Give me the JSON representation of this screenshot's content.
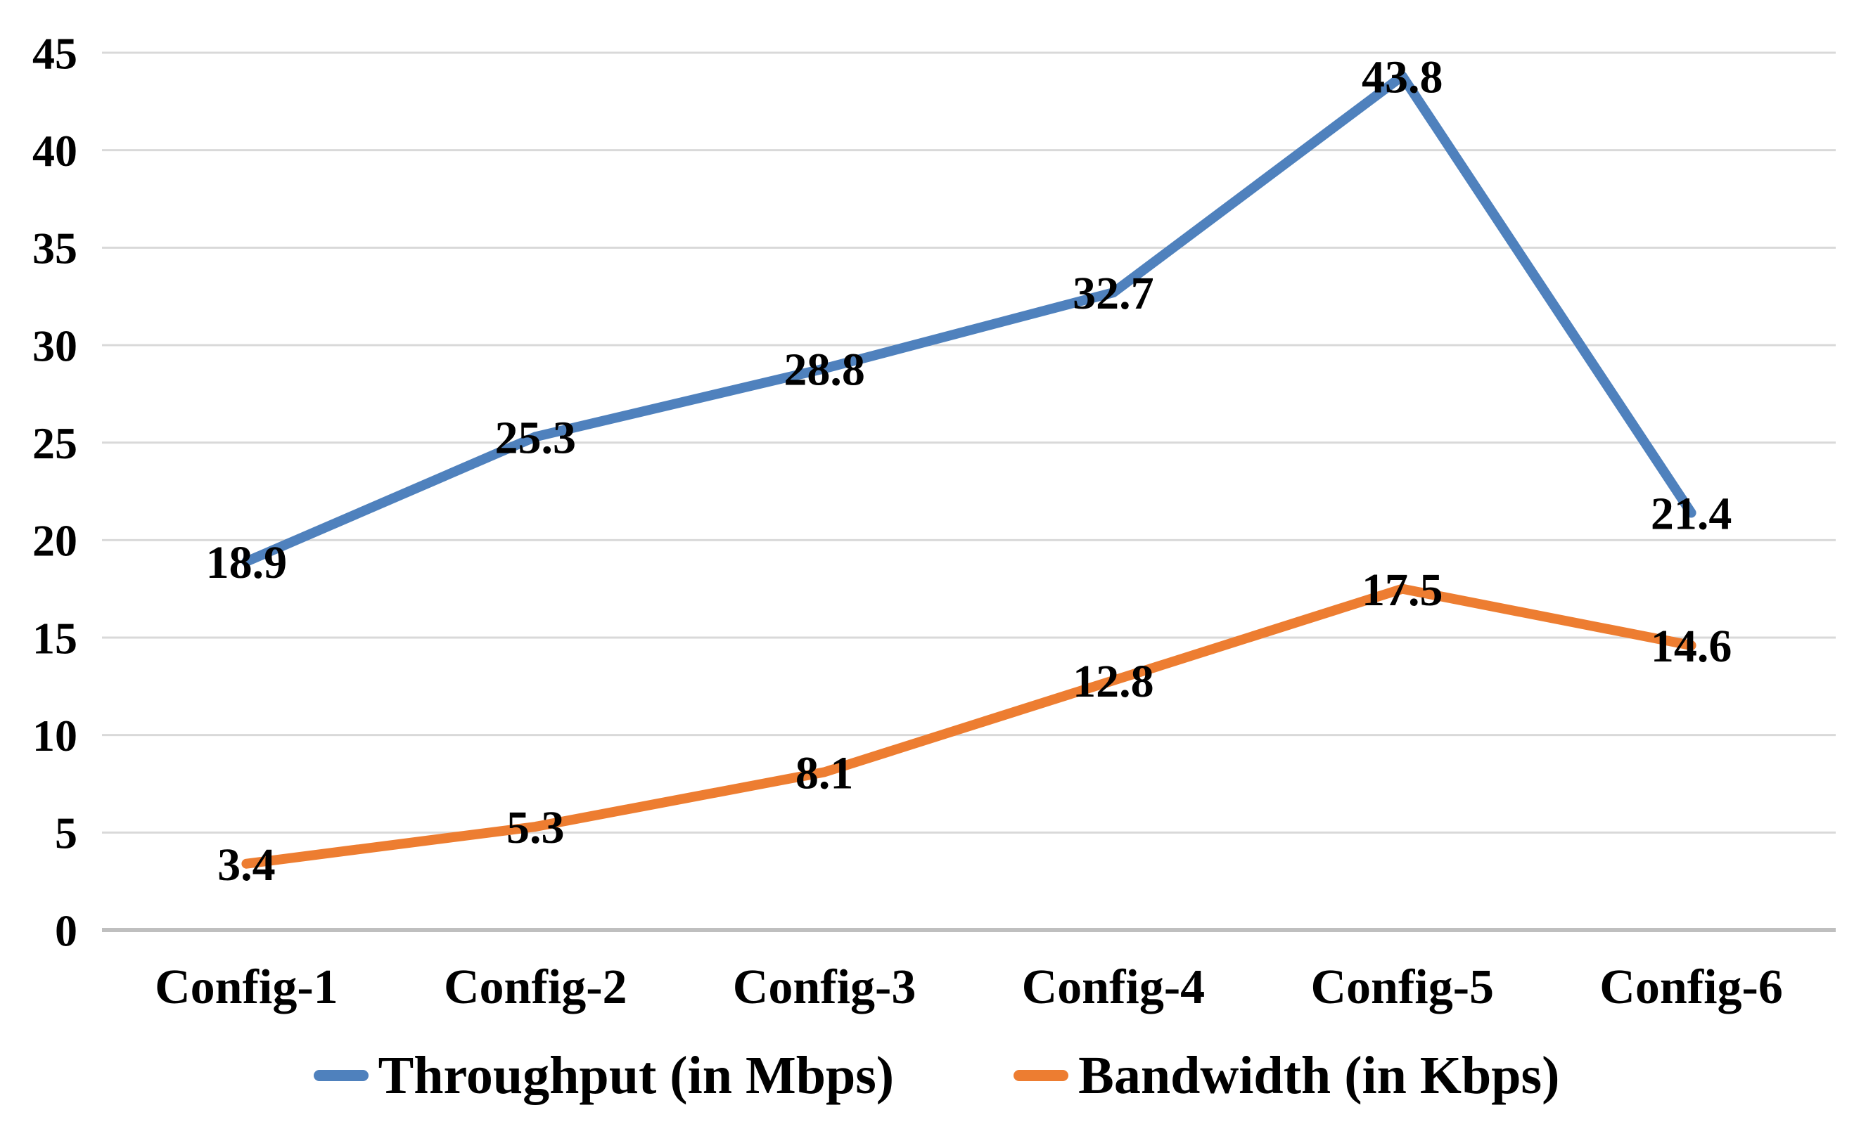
{
  "chart_data": {
    "type": "line",
    "title": "",
    "xlabel": "",
    "ylabel": "",
    "categories": [
      "Config-1",
      "Config-2",
      "Config-3",
      "Config-4",
      "Config-5",
      "Config-6"
    ],
    "series": [
      {
        "name": "Throughput (in Mbps)",
        "values": [
          18.9,
          25.3,
          28.8,
          32.7,
          43.8,
          21.4
        ],
        "color": "#4F81BD"
      },
      {
        "name": "Bandwidth (in Kbps)",
        "values": [
          3.4,
          5.3,
          8.1,
          12.8,
          17.5,
          14.6
        ],
        "color": "#ED7D31"
      }
    ],
    "ylim": [
      0,
      45
    ],
    "yticks": [
      0,
      5,
      10,
      15,
      20,
      25,
      30,
      35,
      40,
      45
    ],
    "grid": true,
    "gridline_color": "#D9D9D9",
    "axis_line_color": "#BFBFBF",
    "text_color": "#000000",
    "background_color": "#FFFFFF",
    "data_labels_position": "center",
    "legend_position": "bottom"
  }
}
